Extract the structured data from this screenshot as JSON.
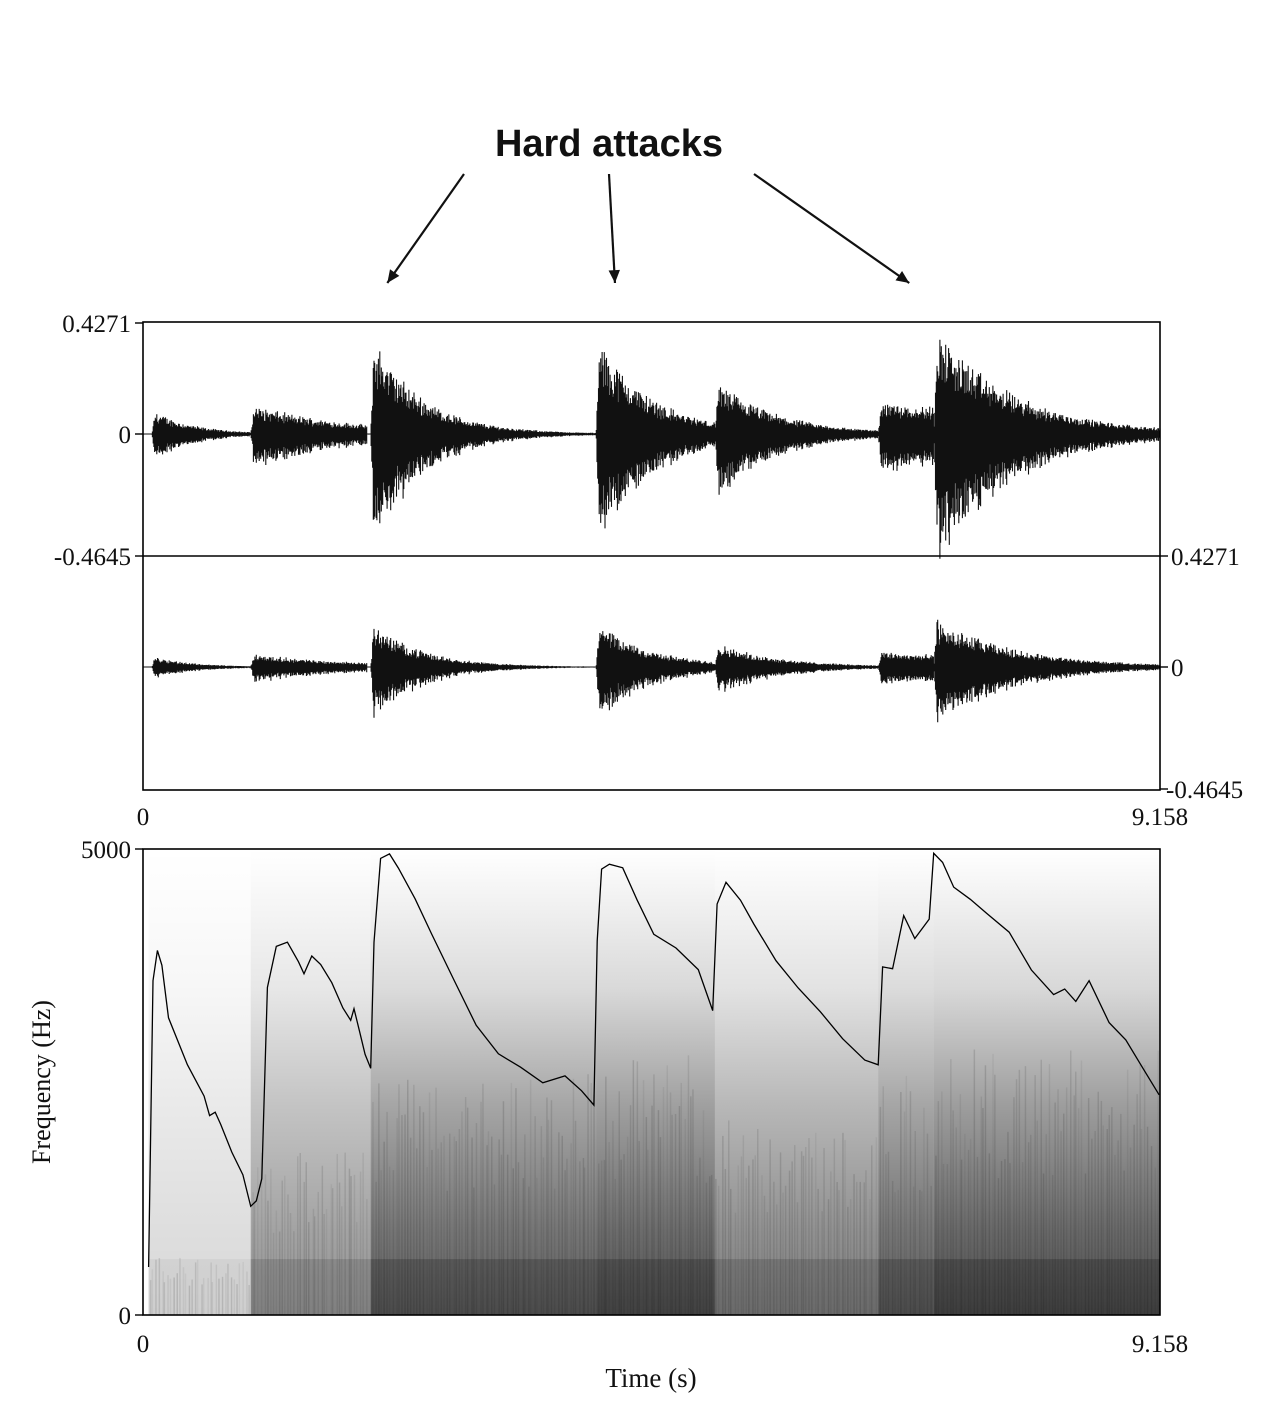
{
  "annotation": {
    "label": "Hard attacks",
    "attack_times_s": [
      2.2,
      4.25,
      6.9
    ]
  },
  "chart_data": [
    {
      "type": "line",
      "name": "waveform-channel-1",
      "x_range_s": [
        0,
        9.158
      ],
      "ylim": [
        -0.4645,
        0.4271
      ],
      "y_tick_labels": [
        "0.4271",
        "0",
        "-0.4645"
      ],
      "events": [
        {
          "onset_s": 0.08,
          "peak": 0.1,
          "decay_s": 0.35,
          "duration_s": 0.9
        },
        {
          "onset_s": 0.97,
          "peak": 0.12,
          "decay_s": 0.9,
          "duration_s": 1.05
        },
        {
          "onset_s": 2.05,
          "peak": 0.41,
          "decay_s": 0.45,
          "duration_s": 2.05
        },
        {
          "onset_s": 4.08,
          "peak": 0.4,
          "decay_s": 0.5,
          "duration_s": 1.1
        },
        {
          "onset_s": 5.15,
          "peak": 0.22,
          "decay_s": 0.55,
          "duration_s": 1.5
        },
        {
          "onset_s": 6.62,
          "peak": 0.14,
          "decay_s": 2.0,
          "duration_s": 0.5
        },
        {
          "onset_s": 7.12,
          "peak": 0.45,
          "decay_s": 0.7,
          "duration_s": 2.04
        }
      ]
    },
    {
      "type": "line",
      "name": "waveform-channel-2",
      "x_range_s": [
        0,
        9.158
      ],
      "ylim": [
        -0.4645,
        0.4271
      ],
      "y_tick_labels": [
        "0.4271",
        "0",
        "-0.4645"
      ],
      "x_tick_labels": [
        "0",
        "9.158"
      ],
      "scale_relative_to_channel_1": 0.45
    },
    {
      "type": "heatmap",
      "name": "spectrogram",
      "xlabel": "Time (s)",
      "ylabel": "Frequency (Hz)",
      "x_range_s": [
        0,
        9.158
      ],
      "ylim_hz": [
        0,
        5000
      ],
      "x_tick_labels": [
        "0",
        "9.158"
      ],
      "y_tick_labels": [
        "5000",
        "0"
      ],
      "intensity_segments": [
        {
          "start_s": 0.05,
          "end_s": 0.97,
          "level": 0.18
        },
        {
          "start_s": 0.97,
          "end_s": 2.05,
          "level": 0.5
        },
        {
          "start_s": 2.05,
          "end_s": 4.08,
          "level": 0.75
        },
        {
          "start_s": 4.08,
          "end_s": 5.15,
          "level": 0.8
        },
        {
          "start_s": 5.15,
          "end_s": 6.62,
          "level": 0.6
        },
        {
          "start_s": 6.62,
          "end_s": 7.12,
          "level": 0.75
        },
        {
          "start_s": 7.12,
          "end_s": 9.158,
          "level": 0.82
        }
      ],
      "pitch_contour": {
        "unit": "Hz",
        "points": [
          [
            0.05,
            500
          ],
          [
            0.09,
            3600
          ],
          [
            0.13,
            3900
          ],
          [
            0.17,
            3750
          ],
          [
            0.23,
            3200
          ],
          [
            0.4,
            2700
          ],
          [
            0.55,
            2350
          ],
          [
            0.6,
            2150
          ],
          [
            0.65,
            2180
          ],
          [
            0.7,
            2050
          ],
          [
            0.8,
            1750
          ],
          [
            0.9,
            1500
          ],
          [
            0.97,
            1150
          ],
          [
            1.02,
            1220
          ],
          [
            1.07,
            1450
          ],
          [
            1.12,
            3500
          ],
          [
            1.2,
            3950
          ],
          [
            1.3,
            4000
          ],
          [
            1.4,
            3800
          ],
          [
            1.45,
            3650
          ],
          [
            1.52,
            3850
          ],
          [
            1.6,
            3750
          ],
          [
            1.7,
            3550
          ],
          [
            1.8,
            3300
          ],
          [
            1.87,
            3150
          ],
          [
            1.9,
            3300
          ],
          [
            1.95,
            3050
          ],
          [
            2.0,
            2800
          ],
          [
            2.05,
            2650
          ],
          [
            2.08,
            4000
          ],
          [
            2.14,
            4900
          ],
          [
            2.22,
            4950
          ],
          [
            2.3,
            4800
          ],
          [
            2.45,
            4450
          ],
          [
            2.6,
            4100
          ],
          [
            2.8,
            3600
          ],
          [
            3.0,
            3100
          ],
          [
            3.2,
            2800
          ],
          [
            3.4,
            2650
          ],
          [
            3.6,
            2480
          ],
          [
            3.8,
            2550
          ],
          [
            3.95,
            2400
          ],
          [
            4.06,
            2250
          ],
          [
            4.09,
            4000
          ],
          [
            4.13,
            4800
          ],
          [
            4.2,
            4850
          ],
          [
            4.32,
            4800
          ],
          [
            4.45,
            4450
          ],
          [
            4.6,
            4100
          ],
          [
            4.8,
            3950
          ],
          [
            5.0,
            3700
          ],
          [
            5.13,
            3250
          ],
          [
            5.17,
            4400
          ],
          [
            5.25,
            4650
          ],
          [
            5.38,
            4450
          ],
          [
            5.5,
            4200
          ],
          [
            5.7,
            3800
          ],
          [
            5.9,
            3500
          ],
          [
            6.1,
            3250
          ],
          [
            6.3,
            2950
          ],
          [
            6.5,
            2720
          ],
          [
            6.62,
            2680
          ],
          [
            6.66,
            3750
          ],
          [
            6.75,
            3700
          ],
          [
            6.85,
            4300
          ],
          [
            6.95,
            4050
          ],
          [
            7.08,
            4250
          ],
          [
            7.12,
            4950
          ],
          [
            7.2,
            4850
          ],
          [
            7.3,
            4600
          ],
          [
            7.45,
            4450
          ],
          [
            7.6,
            4300
          ],
          [
            7.8,
            4100
          ],
          [
            8.0,
            3700
          ],
          [
            8.2,
            3450
          ],
          [
            8.3,
            3500
          ],
          [
            8.4,
            3350
          ],
          [
            8.52,
            3600
          ],
          [
            8.7,
            3150
          ],
          [
            8.85,
            2950
          ],
          [
            9.0,
            2650
          ],
          [
            9.15,
            2350
          ]
        ]
      }
    }
  ]
}
